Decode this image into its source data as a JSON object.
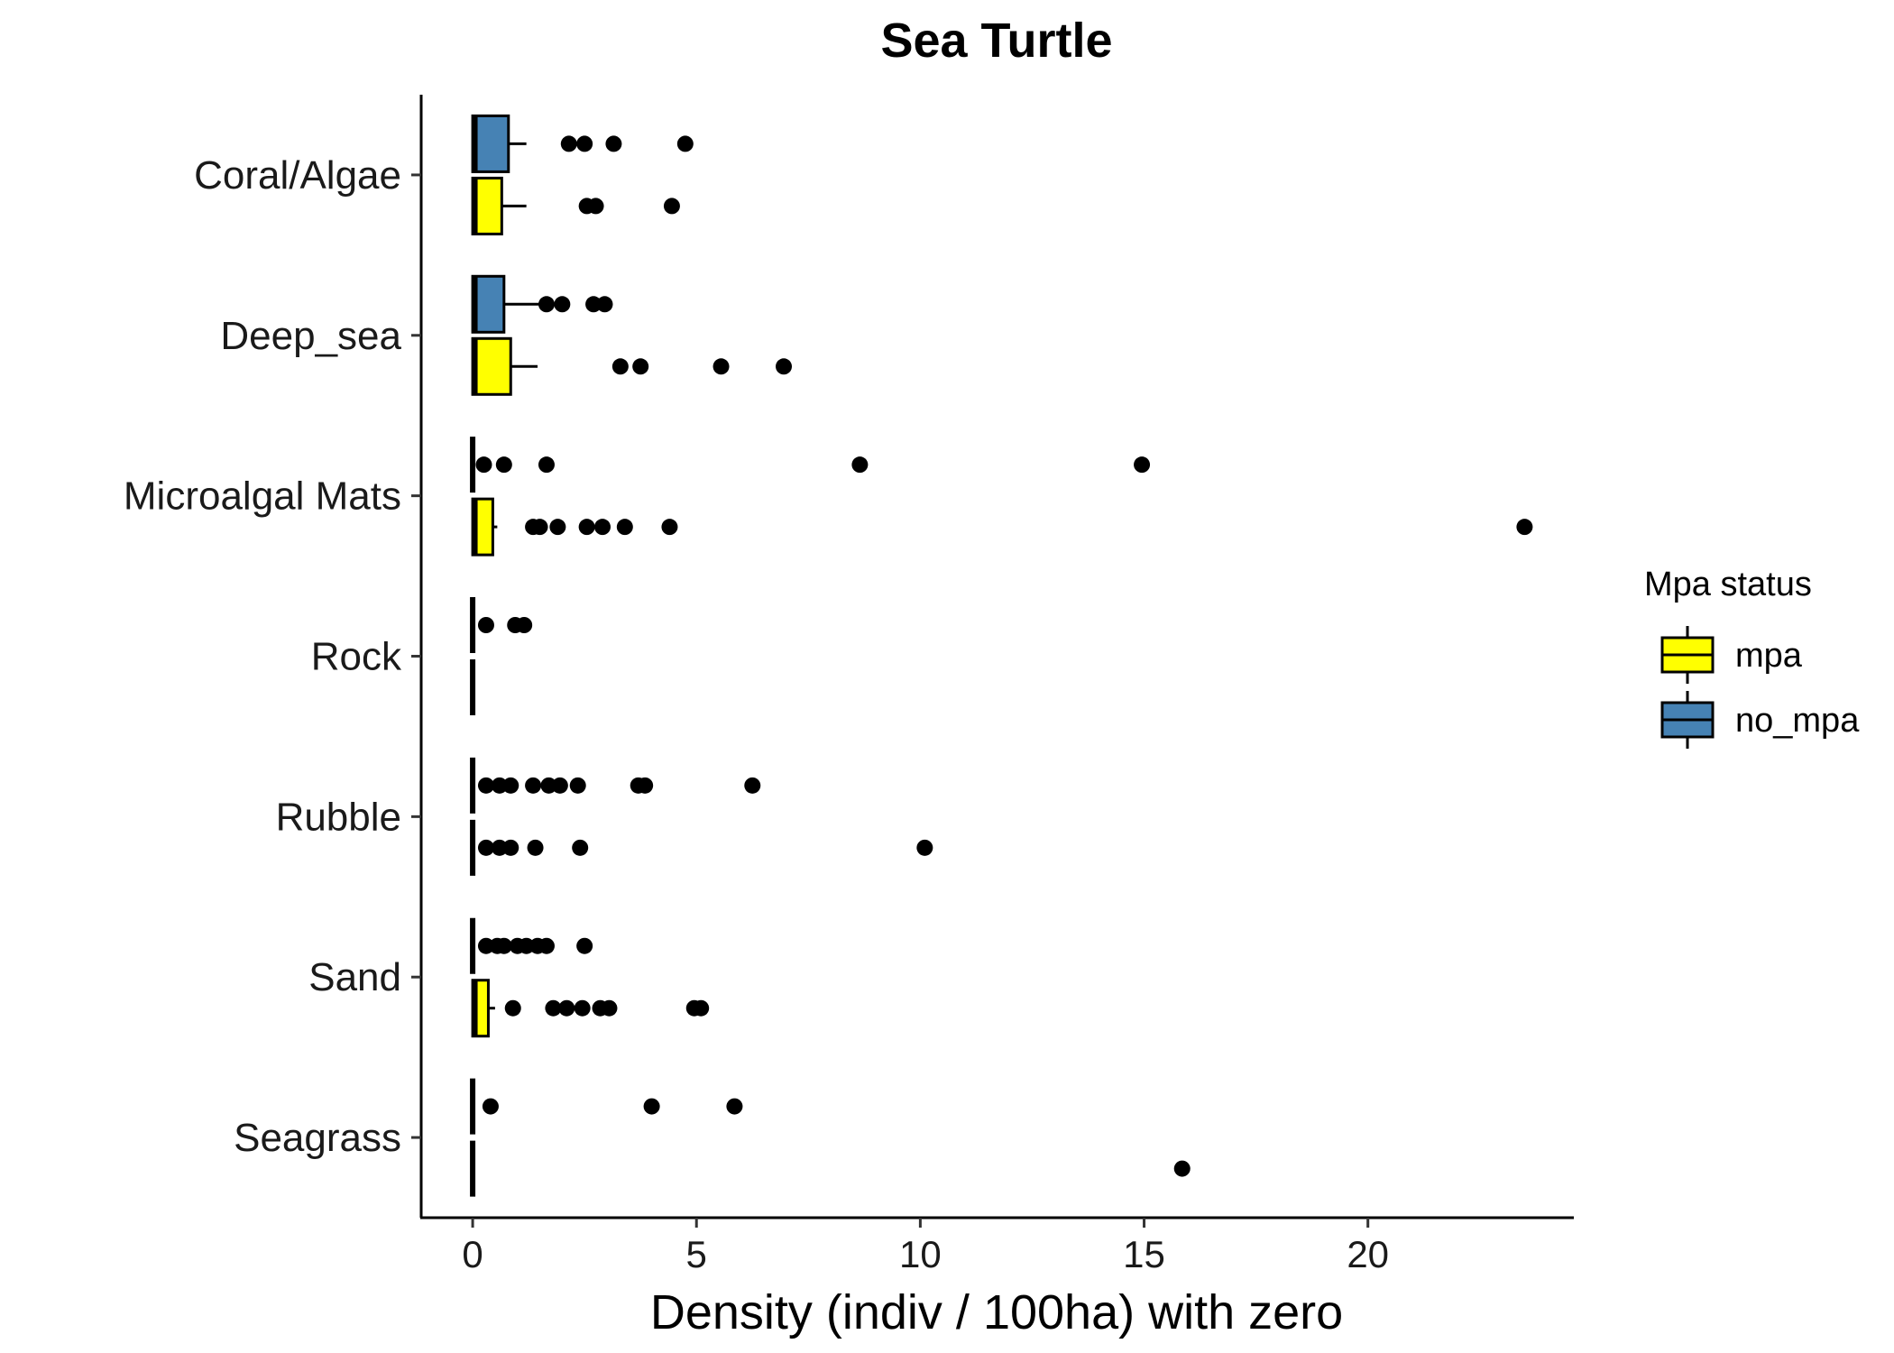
{
  "chart_data": {
    "type": "boxplot",
    "orientation": "horizontal",
    "title": "Sea Turtle",
    "xlabel": "Density (indiv / 100ha) with zero",
    "ylabel": "",
    "xlim": [
      -1.15,
      24.6
    ],
    "xticks": [
      0,
      5,
      10,
      15,
      20
    ],
    "categories": [
      "Coral/Algae",
      "Deep_sea",
      "Microalgal Mats",
      "Rock",
      "Rubble",
      "Sand",
      "Seagrass"
    ],
    "legend": {
      "title": "Mpa status",
      "position": "right",
      "entries": [
        {
          "name": "mpa",
          "color": "#FFFF00"
        },
        {
          "name": "no_mpa",
          "color": "#4682B4"
        }
      ]
    },
    "colors": {
      "mpa": "#FFFF00",
      "no_mpa": "#4682B4",
      "outline": "#000000"
    },
    "series": [
      {
        "name": "no_mpa",
        "boxes": [
          {
            "category": "Coral/Algae",
            "min": 0,
            "q1": 0,
            "median": 0.05,
            "q3": 0.8,
            "max": 1.2,
            "outliers": [
              2.15,
              2.5,
              3.15,
              4.75
            ]
          },
          {
            "category": "Deep_sea",
            "min": 0,
            "q1": 0,
            "median": 0.05,
            "q3": 0.7,
            "max": 1.5,
            "outliers": [
              1.65,
              2.0,
              2.7,
              2.95
            ]
          },
          {
            "category": "Microalgal Mats",
            "min": 0,
            "q1": 0,
            "median": 0,
            "q3": 0,
            "max": 0,
            "outliers": [
              0.25,
              0.7,
              1.65,
              8.65,
              14.95
            ]
          },
          {
            "category": "Rock",
            "min": 0,
            "q1": 0,
            "median": 0,
            "q3": 0,
            "max": 0,
            "outliers": [
              0.3,
              0.95,
              1.15
            ]
          },
          {
            "category": "Rubble",
            "min": 0,
            "q1": 0,
            "median": 0,
            "q3": 0,
            "max": 0,
            "outliers": [
              0.3,
              0.6,
              0.85,
              1.35,
              1.7,
              1.95,
              2.35,
              3.7,
              3.85,
              6.25
            ]
          },
          {
            "category": "Sand",
            "min": 0,
            "q1": 0,
            "median": 0,
            "q3": 0,
            "max": 0,
            "outliers": [
              0.3,
              0.55,
              0.7,
              1.0,
              1.2,
              1.45,
              1.65,
              2.5
            ]
          },
          {
            "category": "Seagrass",
            "min": 0,
            "q1": 0,
            "median": 0,
            "q3": 0,
            "max": 0,
            "outliers": [
              0.4,
              4.0,
              5.85
            ]
          }
        ]
      },
      {
        "name": "mpa",
        "boxes": [
          {
            "category": "Coral/Algae",
            "min": 0,
            "q1": 0,
            "median": 0.05,
            "q3": 0.65,
            "max": 1.2,
            "outliers": [
              2.55,
              2.75,
              4.45
            ]
          },
          {
            "category": "Deep_sea",
            "min": 0,
            "q1": 0,
            "median": 0.05,
            "q3": 0.85,
            "max": 1.45,
            "outliers": [
              3.3,
              3.75,
              5.55,
              6.95
            ]
          },
          {
            "category": "Microalgal Mats",
            "min": 0,
            "q1": 0,
            "median": 0.05,
            "q3": 0.45,
            "max": 0.55,
            "outliers": [
              1.35,
              1.5,
              1.9,
              2.55,
              2.9,
              3.4,
              4.4,
              23.5
            ]
          },
          {
            "category": "Rock",
            "min": 0,
            "q1": 0,
            "median": 0,
            "q3": 0,
            "max": 0,
            "outliers": []
          },
          {
            "category": "Rubble",
            "min": 0,
            "q1": 0,
            "median": 0,
            "q3": 0,
            "max": 0,
            "outliers": [
              0.3,
              0.6,
              0.85,
              1.4,
              2.4,
              10.1
            ]
          },
          {
            "category": "Sand",
            "min": 0,
            "q1": 0,
            "median": 0.05,
            "q3": 0.35,
            "max": 0.5,
            "outliers": [
              0.9,
              1.8,
              2.1,
              2.45,
              2.85,
              3.05,
              4.95,
              5.1
            ]
          },
          {
            "category": "Seagrass",
            "min": 0,
            "q1": 0,
            "median": 0,
            "q3": 0,
            "max": 0,
            "outliers": [
              15.85
            ]
          }
        ]
      }
    ]
  }
}
